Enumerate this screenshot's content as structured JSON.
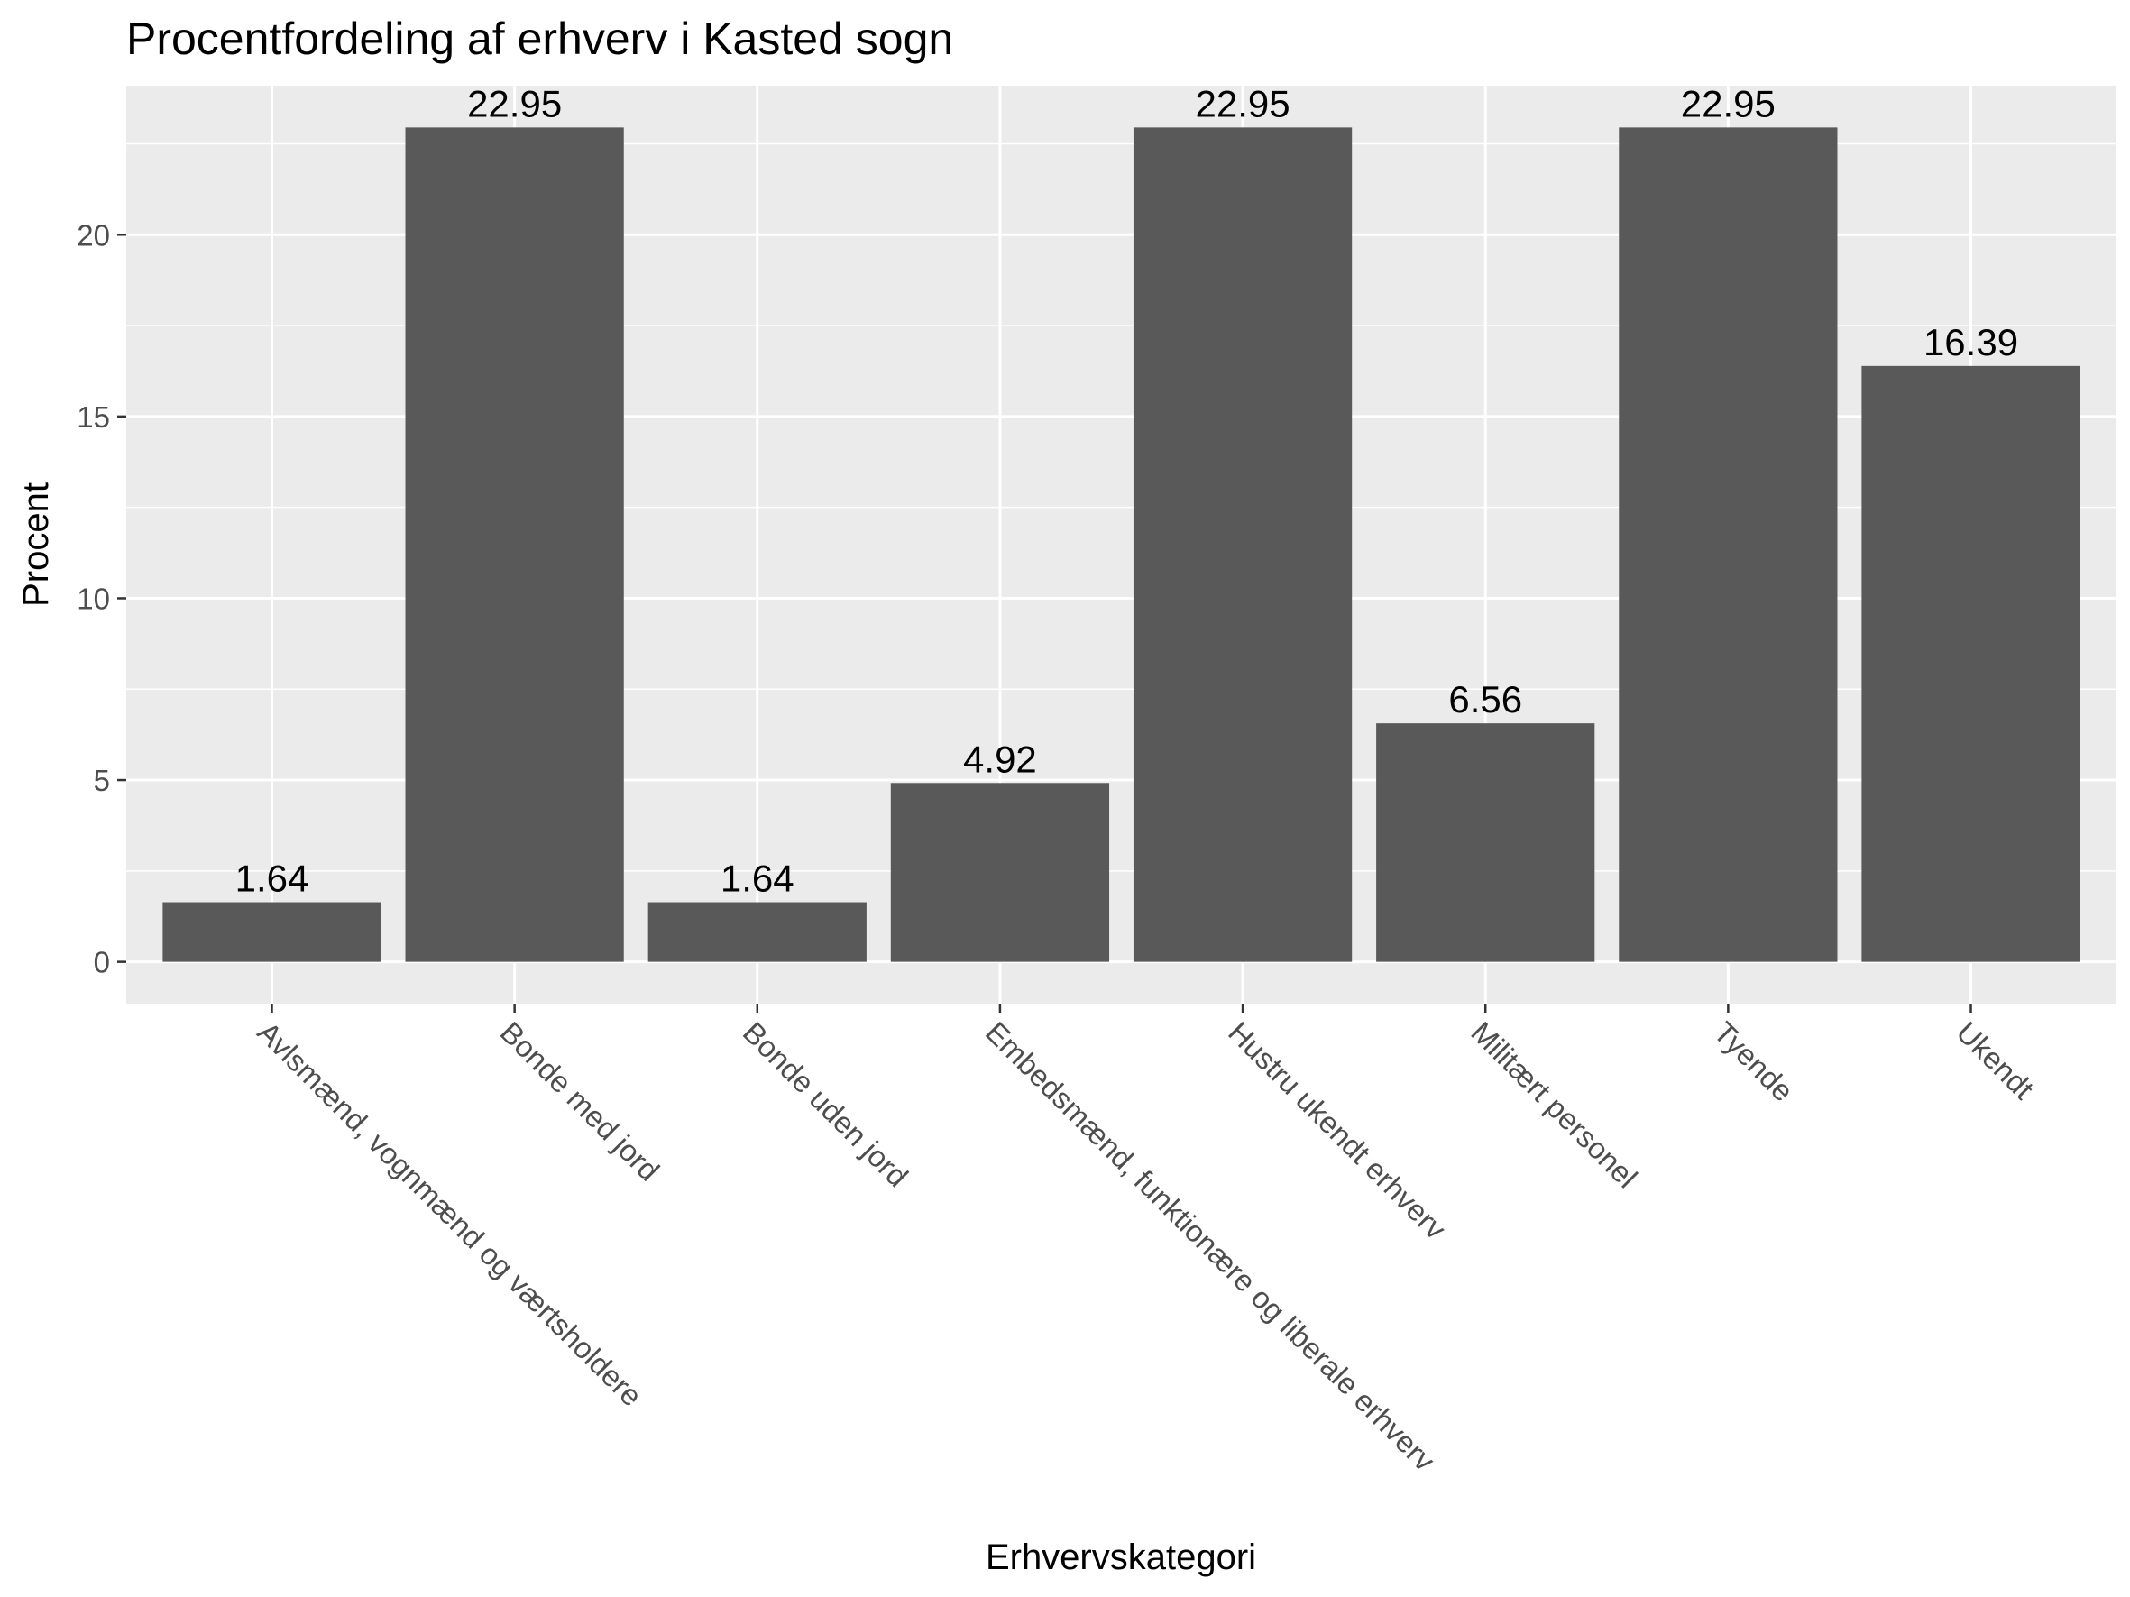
{
  "chart_data": {
    "type": "bar",
    "title": "Procentfordeling af erhverv i Kasted sogn",
    "xlabel": "Erhvervskategori",
    "ylabel": "Procent",
    "categories": [
      "Avlsmænd, vognmænd og værtsholdere",
      "Bonde med jord",
      "Bonde uden jord",
      "Embedsmænd, funktionære og liberale erhverv",
      "Hustru ukendt erhverv",
      "Militært personel",
      "Tyende",
      "Ukendt"
    ],
    "values": [
      1.64,
      22.95,
      1.64,
      4.92,
      22.95,
      6.56,
      22.95,
      16.39
    ],
    "value_labels": [
      "1.64",
      "22.95",
      "1.64",
      "4.92",
      "22.95",
      "6.56",
      "22.95",
      "16.39"
    ],
    "yticks": [
      "0",
      "5",
      "10",
      "15",
      "20"
    ],
    "ylim": [
      -1.15,
      24.1
    ],
    "grid": true,
    "legend": "none",
    "colors": {
      "bar": "#595959",
      "panel": "#ebebeb",
      "grid": "#ffffff",
      "tick": "#333333"
    }
  }
}
